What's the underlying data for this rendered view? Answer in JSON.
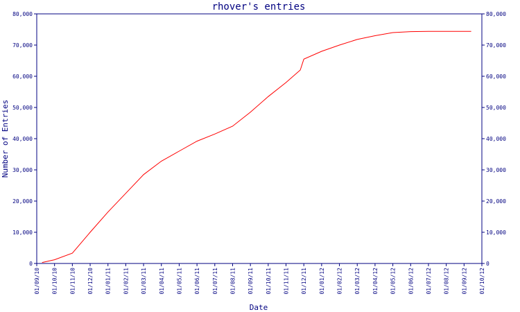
{
  "chart_data": {
    "type": "line",
    "title": "rhover's entries",
    "xlabel": "Date",
    "ylabel": "Number of Entries",
    "ylim": [
      0,
      80000
    ],
    "yticks": [
      0,
      10000,
      20000,
      30000,
      40000,
      50000,
      60000,
      70000,
      80000
    ],
    "ytick_labels": [
      "0",
      "10,000",
      "20,000",
      "30,000",
      "40,000",
      "50,000",
      "60,000",
      "70,000",
      "80,000"
    ],
    "x_categories": [
      "01/09/10",
      "01/10/10",
      "01/11/10",
      "01/12/10",
      "01/01/11",
      "01/02/11",
      "01/03/11",
      "01/04/11",
      "01/05/11",
      "01/06/11",
      "01/07/11",
      "01/08/11",
      "01/09/11",
      "01/10/11",
      "01/11/11",
      "01/12/11",
      "01/01/12",
      "01/02/12",
      "01/03/12",
      "01/04/12",
      "01/05/12",
      "01/06/12",
      "01/07/12",
      "01/08/12",
      "01/09/12",
      "01/10/12"
    ],
    "grid": false,
    "colors": {
      "line": "#ff0000",
      "axis": "#000080",
      "text": "#000080"
    },
    "series": [
      {
        "x": [
          0.3,
          1.0,
          2.0,
          3.0,
          4.0,
          5.0,
          6.0,
          7.0,
          8.0,
          9.0,
          10.0,
          11.0,
          12.0,
          13.0,
          14.0,
          14.8,
          15.0,
          16.0,
          17.0,
          18.0,
          19.0,
          20.0,
          21.0,
          22.0,
          23.0,
          24.0,
          24.4
        ],
        "y": [
          300,
          1200,
          3300,
          10000,
          16500,
          22500,
          28500,
          32800,
          36000,
          39200,
          41500,
          44000,
          48500,
          53500,
          58000,
          62000,
          65500,
          68000,
          70000,
          71800,
          73000,
          74000,
          74300,
          74400,
          74400,
          74400,
          74400
        ]
      }
    ]
  }
}
